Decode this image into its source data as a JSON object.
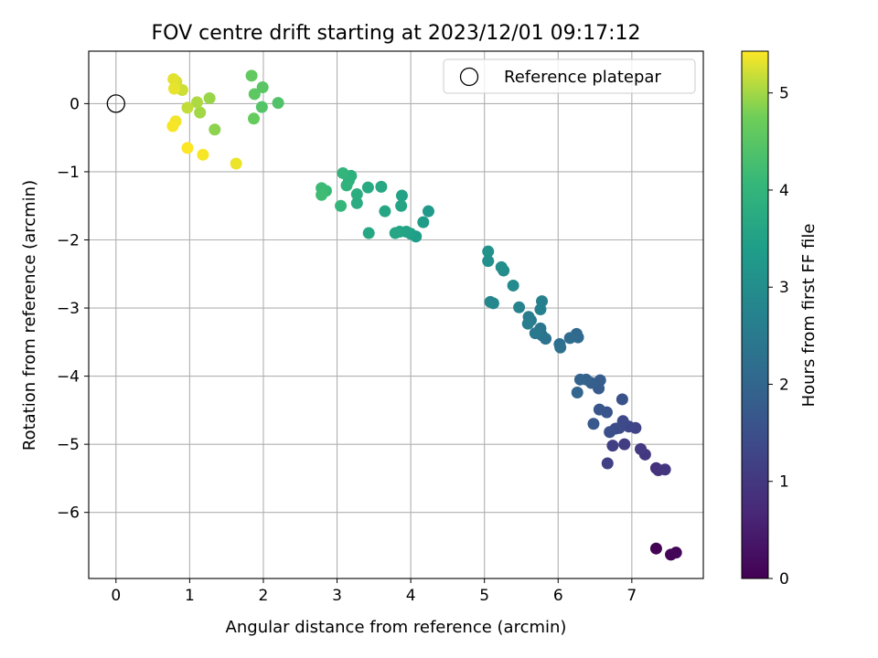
{
  "chart_data": {
    "type": "scatter",
    "title": "FOV centre drift starting at 2023/12/01 09:17:12",
    "xlabel": "Angular distance from reference (arcmin)",
    "ylabel": "Rotation from reference (arcmin)",
    "xlim": [
      -0.37,
      7.97
    ],
    "ylim": [
      -6.97,
      0.77
    ],
    "xticks": [
      0,
      1,
      2,
      3,
      4,
      5,
      6,
      7
    ],
    "yticks": [
      0,
      -1,
      -2,
      -3,
      -4,
      -5,
      -6
    ],
    "xtick_labels": [
      "0",
      "1",
      "2",
      "3",
      "4",
      "5",
      "6",
      "7"
    ],
    "ytick_labels": [
      "0",
      "−1",
      "−2",
      "−3",
      "−4",
      "−5",
      "−6"
    ],
    "grid": true,
    "legend": {
      "placement": "top-right",
      "label": "Reference platepar"
    },
    "reference_point": {
      "x": 0,
      "y": 0
    },
    "colorbar": {
      "label": "Hours from first FF file",
      "colormap": "viridis",
      "range": [
        0,
        5.43
      ],
      "ticks": [
        0,
        1,
        2,
        3,
        4,
        5
      ],
      "tick_labels": [
        "0",
        "1",
        "2",
        "3",
        "4",
        "5"
      ]
    },
    "points": [
      {
        "x": 7.33,
        "y": -6.53,
        "c": 0.02
      },
      {
        "x": 7.53,
        "y": -6.62,
        "c": 0.05
      },
      {
        "x": 7.6,
        "y": -6.59,
        "c": 0.08
      },
      {
        "x": 7.33,
        "y": -5.35,
        "c": 0.85
      },
      {
        "x": 7.36,
        "y": -5.38,
        "c": 0.9
      },
      {
        "x": 7.45,
        "y": -5.37,
        "c": 0.95
      },
      {
        "x": 7.18,
        "y": -5.15,
        "c": 1.0
      },
      {
        "x": 7.12,
        "y": -5.07,
        "c": 1.05
      },
      {
        "x": 6.9,
        "y": -5.0,
        "c": 1.1
      },
      {
        "x": 6.74,
        "y": -5.02,
        "c": 1.15
      },
      {
        "x": 6.67,
        "y": -5.28,
        "c": 1.2
      },
      {
        "x": 7.05,
        "y": -4.76,
        "c": 1.25
      },
      {
        "x": 6.96,
        "y": -4.74,
        "c": 1.3
      },
      {
        "x": 6.88,
        "y": -4.66,
        "c": 1.35
      },
      {
        "x": 6.83,
        "y": -4.76,
        "c": 1.4
      },
      {
        "x": 6.78,
        "y": -4.77,
        "c": 1.45
      },
      {
        "x": 6.7,
        "y": -4.82,
        "c": 1.5
      },
      {
        "x": 6.87,
        "y": -4.34,
        "c": 1.55
      },
      {
        "x": 6.66,
        "y": -4.53,
        "c": 1.6
      },
      {
        "x": 6.56,
        "y": -4.49,
        "c": 1.65
      },
      {
        "x": 6.48,
        "y": -4.7,
        "c": 1.7
      },
      {
        "x": 6.55,
        "y": -4.18,
        "c": 1.75
      },
      {
        "x": 6.57,
        "y": -4.06,
        "c": 1.8
      },
      {
        "x": 6.45,
        "y": -4.1,
        "c": 1.85
      },
      {
        "x": 6.38,
        "y": -4.05,
        "c": 1.9
      },
      {
        "x": 6.3,
        "y": -4.05,
        "c": 1.95
      },
      {
        "x": 6.26,
        "y": -4.24,
        "c": 2.0
      },
      {
        "x": 6.25,
        "y": -3.38,
        "c": 2.05
      },
      {
        "x": 6.27,
        "y": -3.43,
        "c": 2.1
      },
      {
        "x": 6.16,
        "y": -3.44,
        "c": 2.15
      },
      {
        "x": 6.02,
        "y": -3.53,
        "c": 2.2
      },
      {
        "x": 6.03,
        "y": -3.58,
        "c": 2.25
      },
      {
        "x": 5.83,
        "y": -3.45,
        "c": 2.3
      },
      {
        "x": 5.78,
        "y": -3.4,
        "c": 2.35
      },
      {
        "x": 5.76,
        "y": -3.3,
        "c": 2.4
      },
      {
        "x": 5.69,
        "y": -3.37,
        "c": 2.45
      },
      {
        "x": 5.63,
        "y": -3.18,
        "c": 2.5
      },
      {
        "x": 5.6,
        "y": -3.13,
        "c": 2.55
      },
      {
        "x": 5.59,
        "y": -3.23,
        "c": 2.6
      },
      {
        "x": 5.78,
        "y": -2.9,
        "c": 2.65
      },
      {
        "x": 5.76,
        "y": -3.02,
        "c": 2.7
      },
      {
        "x": 5.47,
        "y": -2.99,
        "c": 2.75
      },
      {
        "x": 5.08,
        "y": -2.91,
        "c": 2.8
      },
      {
        "x": 5.12,
        "y": -2.93,
        "c": 2.85
      },
      {
        "x": 5.39,
        "y": -2.67,
        "c": 2.9
      },
      {
        "x": 5.26,
        "y": -2.45,
        "c": 2.95
      },
      {
        "x": 5.23,
        "y": -2.4,
        "c": 3.0
      },
      {
        "x": 5.05,
        "y": -2.31,
        "c": 3.05
      },
      {
        "x": 5.05,
        "y": -2.17,
        "c": 3.1
      },
      {
        "x": 4.24,
        "y": -1.58,
        "c": 3.3
      },
      {
        "x": 4.17,
        "y": -1.74,
        "c": 3.35
      },
      {
        "x": 4.07,
        "y": -1.95,
        "c": 3.4
      },
      {
        "x": 4.0,
        "y": -1.91,
        "c": 3.45
      },
      {
        "x": 3.94,
        "y": -1.88,
        "c": 3.5
      },
      {
        "x": 3.85,
        "y": -1.88,
        "c": 3.55
      },
      {
        "x": 3.79,
        "y": -1.9,
        "c": 3.6
      },
      {
        "x": 3.43,
        "y": -1.9,
        "c": 3.65
      },
      {
        "x": 3.88,
        "y": -1.35,
        "c": 3.5
      },
      {
        "x": 3.87,
        "y": -1.5,
        "c": 3.55
      },
      {
        "x": 3.65,
        "y": -1.58,
        "c": 3.6
      },
      {
        "x": 3.6,
        "y": -1.22,
        "c": 3.65
      },
      {
        "x": 3.42,
        "y": -1.23,
        "c": 3.7
      },
      {
        "x": 3.27,
        "y": -1.46,
        "c": 3.75
      },
      {
        "x": 3.27,
        "y": -1.33,
        "c": 3.8
      },
      {
        "x": 3.19,
        "y": -1.06,
        "c": 3.85
      },
      {
        "x": 3.16,
        "y": -1.13,
        "c": 3.9
      },
      {
        "x": 3.13,
        "y": -1.2,
        "c": 3.95
      },
      {
        "x": 3.08,
        "y": -1.02,
        "c": 4.0
      },
      {
        "x": 3.05,
        "y": -1.5,
        "c": 4.05
      },
      {
        "x": 2.85,
        "y": -1.28,
        "c": 4.1
      },
      {
        "x": 2.79,
        "y": -1.24,
        "c": 4.15
      },
      {
        "x": 2.79,
        "y": -1.34,
        "c": 4.2
      },
      {
        "x": 2.2,
        "y": 0.01,
        "c": 4.4
      },
      {
        "x": 1.98,
        "y": -0.05,
        "c": 4.45
      },
      {
        "x": 1.99,
        "y": 0.24,
        "c": 4.5
      },
      {
        "x": 1.88,
        "y": 0.14,
        "c": 4.55
      },
      {
        "x": 1.84,
        "y": 0.41,
        "c": 4.6
      },
      {
        "x": 1.87,
        "y": -0.22,
        "c": 4.65
      },
      {
        "x": 1.63,
        "y": -0.88,
        "c": 5.35
      },
      {
        "x": 1.34,
        "y": -0.38,
        "c": 4.9
      },
      {
        "x": 1.27,
        "y": 0.08,
        "c": 4.95
      },
      {
        "x": 1.14,
        "y": -0.13,
        "c": 5.0
      },
      {
        "x": 1.1,
        "y": 0.02,
        "c": 5.05
      },
      {
        "x": 1.18,
        "y": -0.75,
        "c": 5.4
      },
      {
        "x": 0.97,
        "y": -0.65,
        "c": 5.42
      },
      {
        "x": 0.97,
        "y": -0.06,
        "c": 5.15
      },
      {
        "x": 0.9,
        "y": 0.2,
        "c": 5.2
      },
      {
        "x": 0.82,
        "y": 0.32,
        "c": 5.25
      },
      {
        "x": 0.78,
        "y": 0.36,
        "c": 5.3
      },
      {
        "x": 0.79,
        "y": 0.22,
        "c": 5.33
      },
      {
        "x": 0.81,
        "y": -0.26,
        "c": 5.37
      },
      {
        "x": 0.77,
        "y": -0.33,
        "c": 5.4
      }
    ]
  }
}
